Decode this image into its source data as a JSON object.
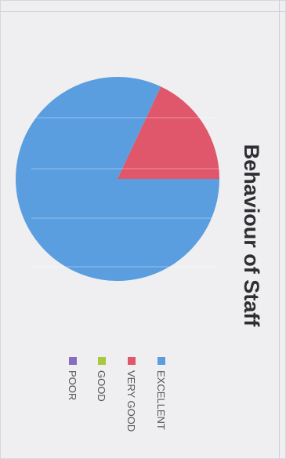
{
  "chart_data": {
    "type": "pie",
    "title": "Behaviour of Staff",
    "categories": [
      "EXCELLENT",
      "VERY GOOD",
      "GOOD",
      "POOR"
    ],
    "values": [
      82,
      18,
      0,
      0
    ],
    "colors": [
      "#5b9ee0",
      "#e0566a",
      "#a8c93e",
      "#8a6bc1"
    ],
    "legend_position": "bottom",
    "orientation": "rotated-90-clockwise"
  }
}
